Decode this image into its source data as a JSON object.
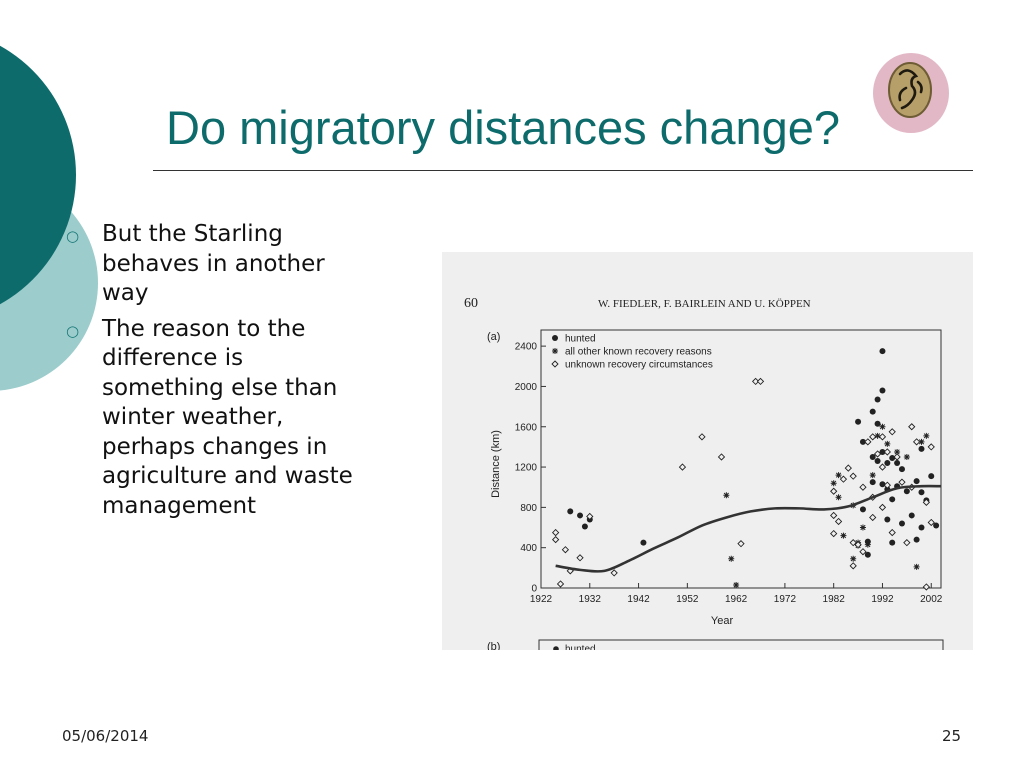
{
  "slide": {
    "title": "Do migratory distances change?",
    "bullets": [
      "But the Starling behaves in another way",
      "The reason to the difference is something else than winter weather, perhaps changes in agriculture and waste management"
    ],
    "date": "05/06/2014",
    "page_number": "25",
    "decoration_icon": "bird-medallion-icon",
    "colors": {
      "accent": "#0d6b6b",
      "light_teal": "#9ccccc",
      "medallion_ring": "#e3b8c6"
    }
  },
  "figure": {
    "page_number": "60",
    "running_head": "W. FIEDLER, F. BAIRLEIN AND U. KÖPPEN"
  },
  "chart_data": {
    "type": "scatter",
    "panel_label": "(a)",
    "next_panel_label": "(b)",
    "next_panel_legend": "hunted",
    "xlabel": "Year",
    "ylabel": "Distance (km)",
    "xlim": [
      1922,
      2004
    ],
    "ylim": [
      0,
      2560
    ],
    "x_ticks": [
      1922,
      1932,
      1942,
      1952,
      1962,
      1972,
      1982,
      1992,
      2002
    ],
    "y_ticks": [
      0,
      400,
      800,
      1200,
      1600,
      2000,
      2400
    ],
    "legend_position": "top-left",
    "grid": false,
    "series": [
      {
        "name": "hunted",
        "marker": "filled-circle",
        "points": [
          [
            1928,
            760
          ],
          [
            1930,
            720
          ],
          [
            1931,
            610
          ],
          [
            1932,
            680
          ],
          [
            1943,
            450
          ],
          [
            1987,
            1650
          ],
          [
            1988,
            1450
          ],
          [
            1989,
            460
          ],
          [
            1990,
            1750
          ],
          [
            1990,
            1050
          ],
          [
            1991,
            1870
          ],
          [
            1991,
            1630
          ],
          [
            1992,
            2350
          ],
          [
            1992,
            1960
          ],
          [
            1992,
            1350
          ],
          [
            1992,
            1030
          ],
          [
            1993,
            680
          ],
          [
            1993,
            1240
          ],
          [
            1994,
            1290
          ],
          [
            1994,
            880
          ],
          [
            1994,
            450
          ],
          [
            1995,
            1240
          ],
          [
            1996,
            1180
          ],
          [
            1996,
            640
          ],
          [
            1997,
            960
          ],
          [
            1998,
            720
          ],
          [
            1999,
            1060
          ],
          [
            1999,
            480
          ],
          [
            2000,
            1380
          ],
          [
            2000,
            950
          ],
          [
            2000,
            600
          ],
          [
            2001,
            870
          ],
          [
            2002,
            1110
          ],
          [
            2003,
            620
          ],
          [
            1989,
            330
          ],
          [
            1991,
            1260
          ],
          [
            1993,
            980
          ],
          [
            1995,
            1010
          ],
          [
            1990,
            1300
          ],
          [
            1988,
            780
          ]
        ]
      },
      {
        "name": "all other known recovery reasons",
        "marker": "asterisk",
        "points": [
          [
            1960,
            920
          ],
          [
            1961,
            290
          ],
          [
            1962,
            30
          ],
          [
            1982,
            1040
          ],
          [
            1983,
            1120
          ],
          [
            1983,
            900
          ],
          [
            1984,
            520
          ],
          [
            1986,
            820
          ],
          [
            1986,
            290
          ],
          [
            1987,
            420
          ],
          [
            1988,
            600
          ],
          [
            1989,
            430
          ],
          [
            1990,
            1120
          ],
          [
            1991,
            1510
          ],
          [
            1992,
            1600
          ],
          [
            1993,
            1430
          ],
          [
            1995,
            1350
          ],
          [
            1997,
            1300
          ],
          [
            1999,
            210
          ],
          [
            2000,
            1450
          ],
          [
            2001,
            1510
          ],
          [
            1987,
            450
          ]
        ]
      },
      {
        "name": "unknown recovery circumstances",
        "marker": "open-diamond",
        "points": [
          [
            1925,
            550
          ],
          [
            1925,
            480
          ],
          [
            1926,
            40
          ],
          [
            1927,
            380
          ],
          [
            1928,
            170
          ],
          [
            1930,
            300
          ],
          [
            1932,
            710
          ],
          [
            1937,
            150
          ],
          [
            1951,
            1200
          ],
          [
            1955,
            1500
          ],
          [
            1959,
            1300
          ],
          [
            1963,
            440
          ],
          [
            1966,
            2050
          ],
          [
            1967,
            2050
          ],
          [
            1982,
            960
          ],
          [
            1982,
            720
          ],
          [
            1982,
            540
          ],
          [
            1983,
            660
          ],
          [
            1984,
            1080
          ],
          [
            1985,
            1190
          ],
          [
            1986,
            1110
          ],
          [
            1986,
            450
          ],
          [
            1987,
            430
          ],
          [
            1988,
            1000
          ],
          [
            1988,
            360
          ],
          [
            1989,
            1450
          ],
          [
            1990,
            1500
          ],
          [
            1990,
            900
          ],
          [
            1991,
            1330
          ],
          [
            1992,
            1500
          ],
          [
            1992,
            1200
          ],
          [
            1992,
            800
          ],
          [
            1993,
            1350
          ],
          [
            1993,
            1020
          ],
          [
            1994,
            1550
          ],
          [
            1995,
            1300
          ],
          [
            1996,
            1050
          ],
          [
            1997,
            450
          ],
          [
            1998,
            1600
          ],
          [
            1998,
            1000
          ],
          [
            1999,
            1450
          ],
          [
            2001,
            850
          ],
          [
            2002,
            650
          ],
          [
            2002,
            1400
          ],
          [
            1986,
            220
          ],
          [
            1990,
            700
          ],
          [
            1994,
            550
          ],
          [
            2001,
            10
          ]
        ]
      },
      {
        "name": "",
        "marker": "smooth-trend-line",
        "points": [
          [
            1925,
            220
          ],
          [
            1930,
            180
          ],
          [
            1935,
            170
          ],
          [
            1940,
            270
          ],
          [
            1945,
            390
          ],
          [
            1950,
            500
          ],
          [
            1955,
            620
          ],
          [
            1960,
            700
          ],
          [
            1965,
            760
          ],
          [
            1970,
            790
          ],
          [
            1975,
            790
          ],
          [
            1980,
            780
          ],
          [
            1985,
            810
          ],
          [
            1990,
            900
          ],
          [
            1995,
            990
          ],
          [
            2000,
            1010
          ],
          [
            2004,
            1010
          ]
        ]
      }
    ]
  }
}
